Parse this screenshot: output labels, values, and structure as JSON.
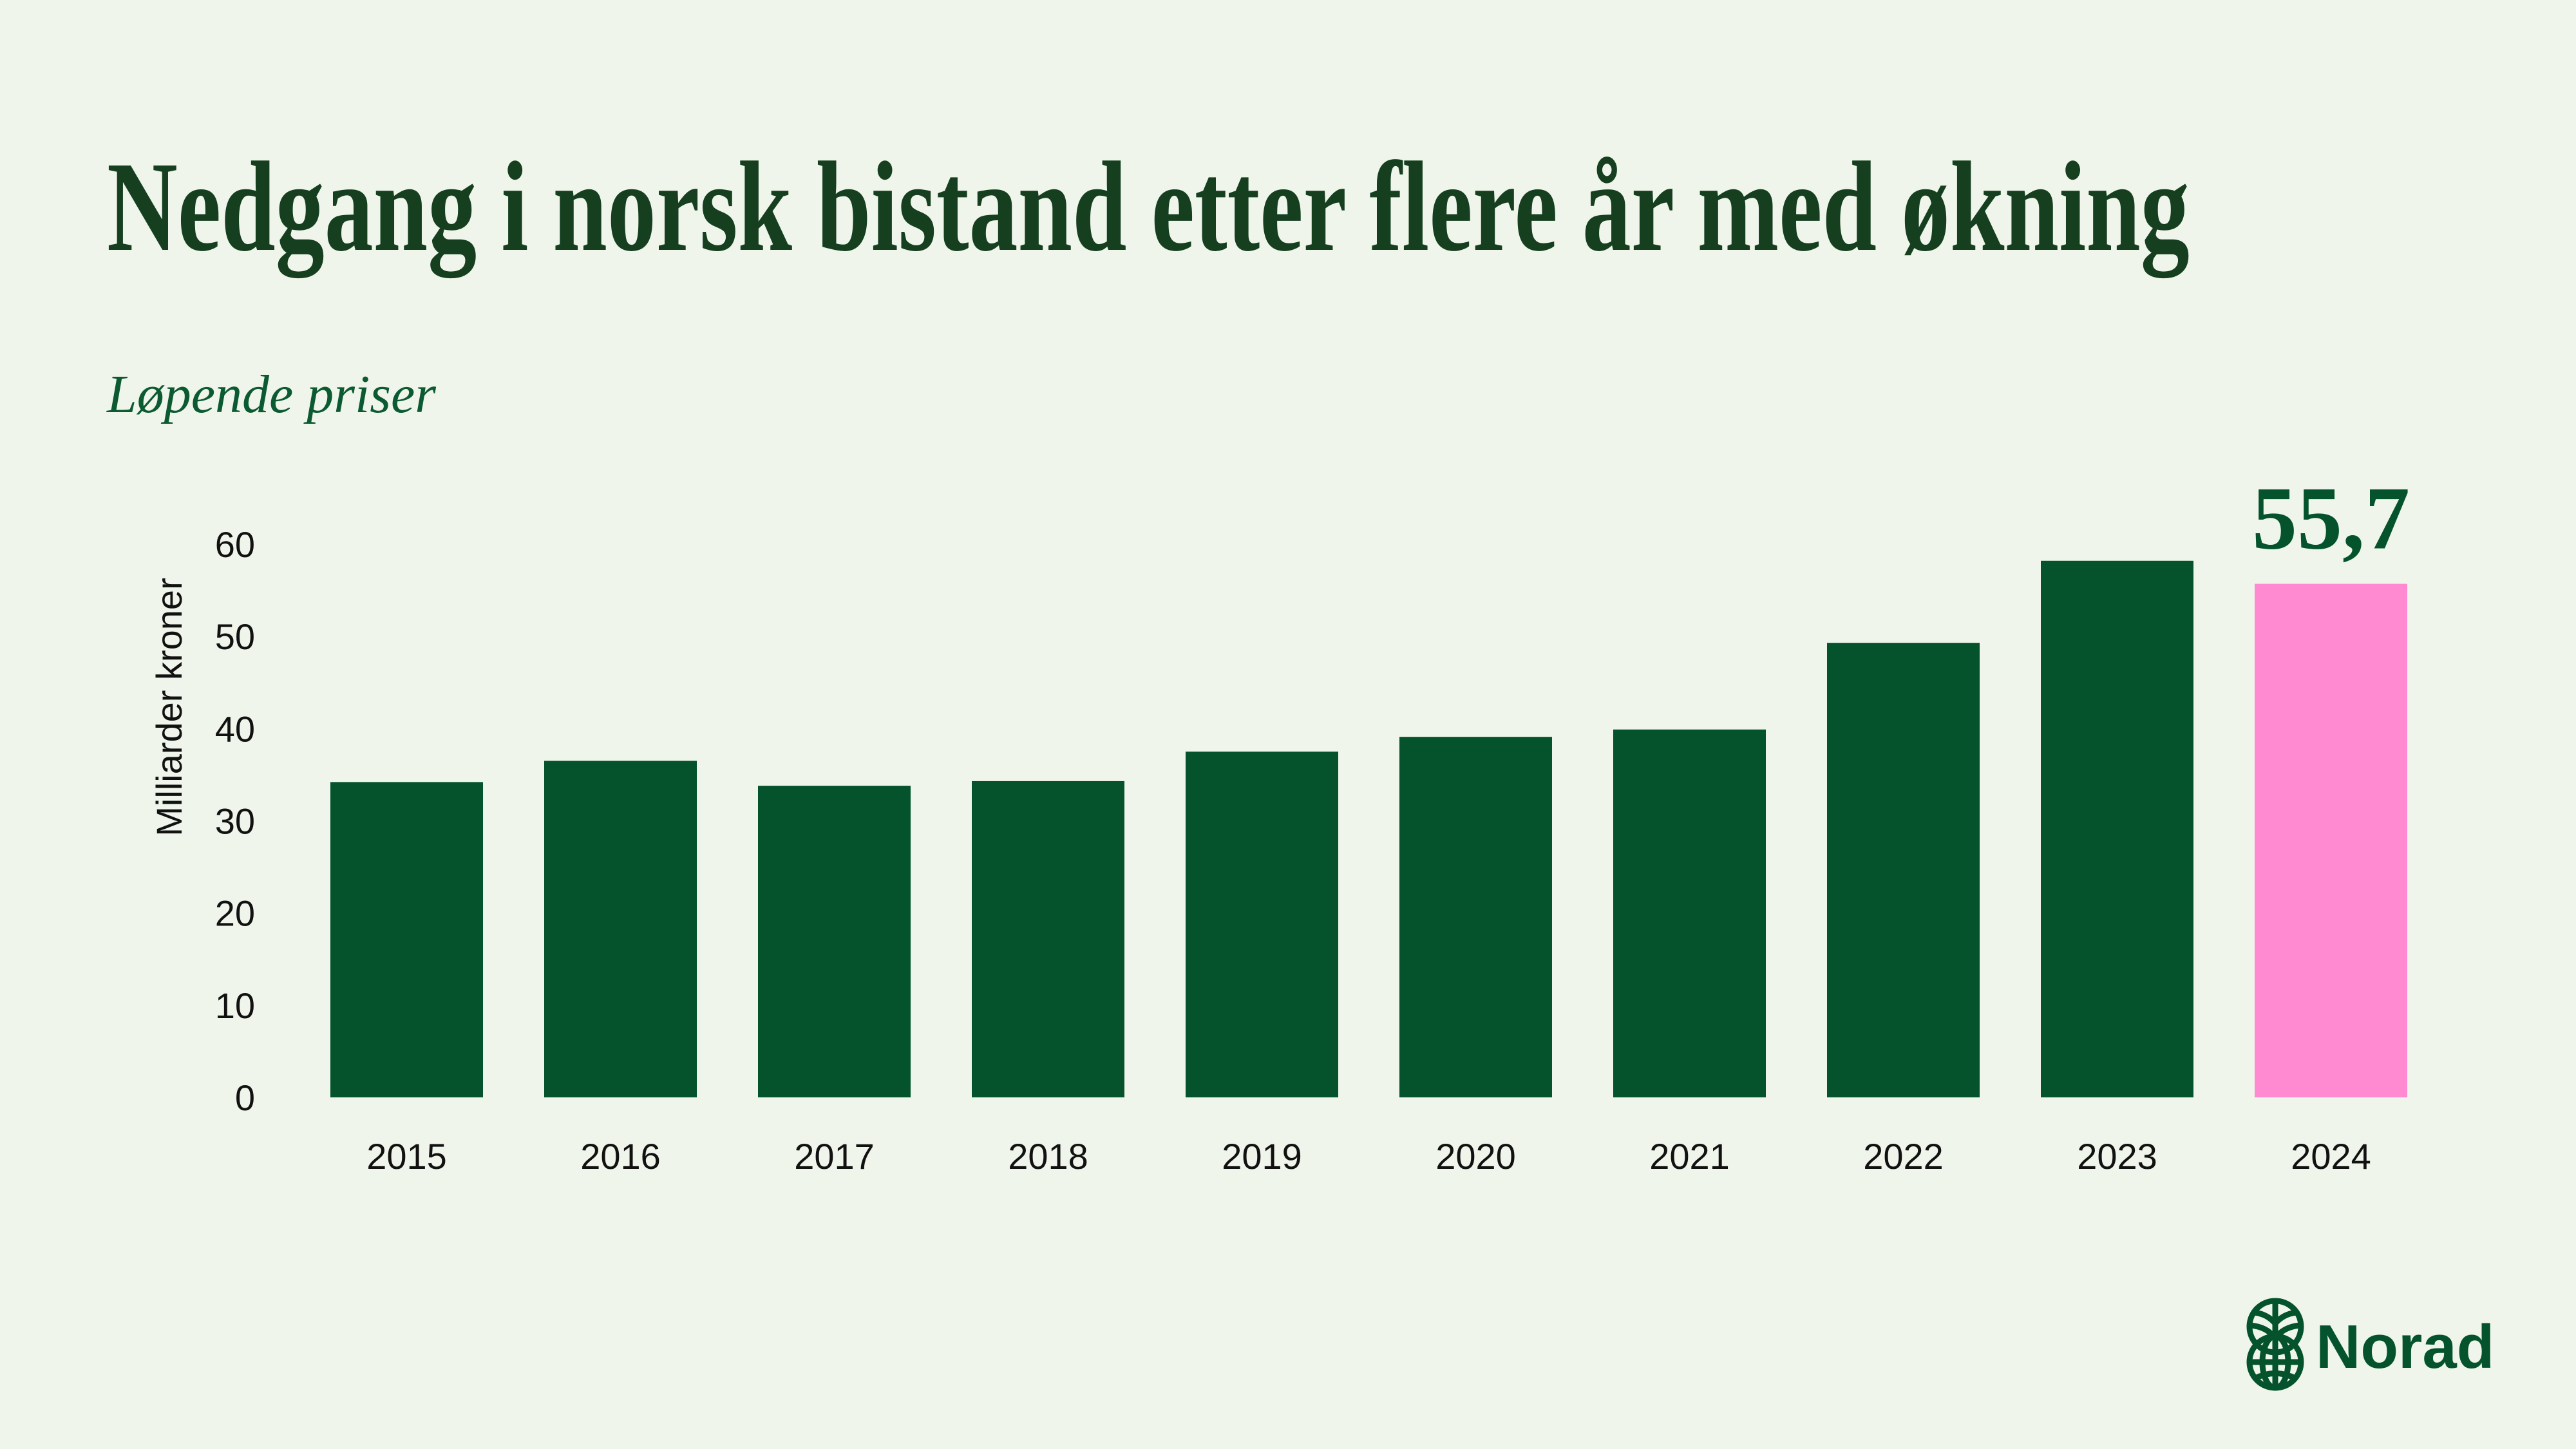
{
  "chart_data": {
    "type": "bar",
    "title": "Nedgang i norsk bistand etter flere år med økning",
    "subtitle": "Løpende priser",
    "xlabel": "",
    "ylabel": "Milliarder kroner",
    "ylim": [
      0,
      60
    ],
    "yticks": [
      "0",
      "10",
      "20",
      "30",
      "40",
      "50",
      "60"
    ],
    "grid": false,
    "categories": [
      "2015",
      "2016",
      "2017",
      "2018",
      "2019",
      "2020",
      "2021",
      "2022",
      "2023",
      "2024"
    ],
    "values": [
      34.2,
      36.5,
      33.8,
      34.3,
      37.5,
      39.1,
      39.9,
      49.3,
      58.2,
      55.7
    ],
    "highlight_index": 9,
    "annotation": "55,7",
    "colors": {
      "bar": "#04532d",
      "highlight": "#ff8ad2",
      "background": "#eff5ea"
    }
  },
  "brand": {
    "name": "Norad",
    "icon": "norad-globe-leaf-icon"
  }
}
